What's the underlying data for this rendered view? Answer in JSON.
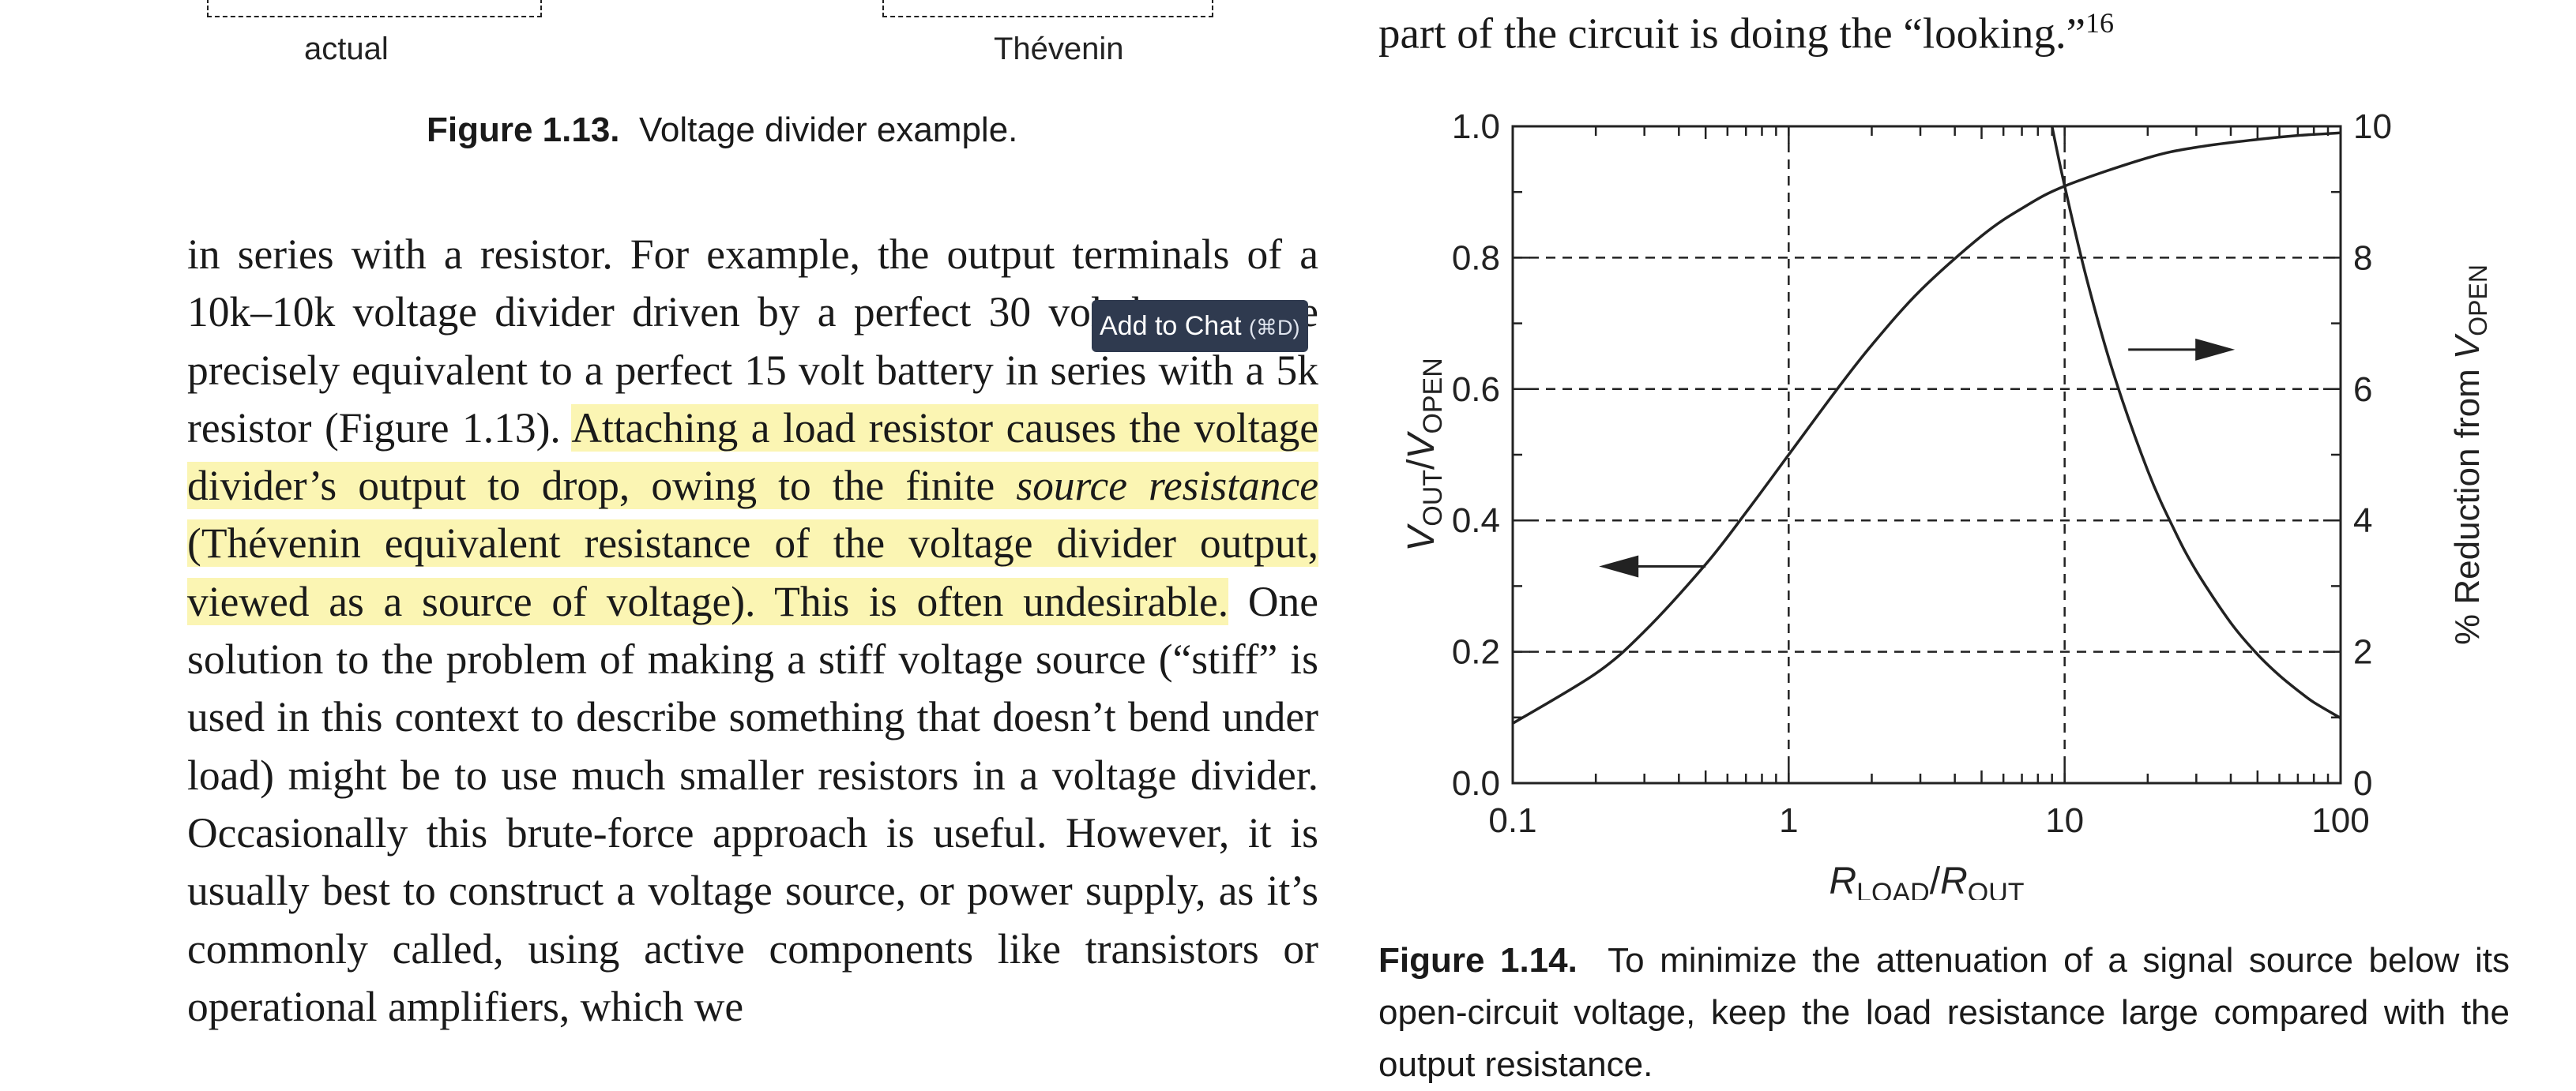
{
  "figure_1_13": {
    "label_actual": "actual",
    "label_thevenin": "Thévenin",
    "caption_number": "Figure 1.13.",
    "caption_text": "Voltage divider example."
  },
  "body_text": {
    "p1_plain": "in series with a resistor. For example, the output terminals of a 10k–10k voltage divider driven by a perfect 30 volt battery are precisely equivalent to a perfect 15 volt battery in series with a 5k resistor (Figure 1.13). ",
    "p1_hl1": "Attaching a load resistor causes the voltage divider’s output to drop, owing to the finite ",
    "p1_hl_italic": "source resistance",
    "p1_hl2": " (Thévenin equivalent resistance of the voltage divider output, viewed as a source of voltage). This is often undesirable.",
    "p1_rest": " One solution to the problem of making a stiff voltage source (“stiff” is used in this context to describe something that doesn’t bend under load) might be to use much smaller resistors in a voltage divider. Occasionally this brute-force approach is useful. However, it is usually best to construct a voltage source, or power supply, as it’s commonly called, using active components like transistors or operational amplifiers, which we"
  },
  "tooltip": {
    "label": "Add to Chat",
    "shortcut": "(⌘D)"
  },
  "right_column": {
    "top_line": "part of the circuit is doing the “looking.”",
    "footnote": "16"
  },
  "chart_data": {
    "type": "line",
    "xscale": "log",
    "xlim": [
      0.1,
      100
    ],
    "ylim_left": [
      0,
      1.0
    ],
    "ylim_right": [
      0,
      10
    ],
    "x_ticks": [
      "0.1",
      "1",
      "10",
      "100"
    ],
    "y_left_ticks": [
      "0.0",
      "0.2",
      "0.4",
      "0.6",
      "0.8",
      "1.0"
    ],
    "y_right_ticks": [
      "0",
      "2",
      "4",
      "6",
      "8",
      "10"
    ],
    "xlabel": {
      "main": "R",
      "sub1": "LOAD",
      "slash": "/R",
      "sub2": "OUT"
    },
    "ylabel_left": {
      "main": "V",
      "sub1": "OUT",
      "slash": "/V",
      "sub2": "OPEN"
    },
    "ylabel_right": {
      "main": "% Reduction from V",
      "sub": "OPEN"
    },
    "grid": "dashed at major ticks",
    "series": [
      {
        "axis": "left",
        "x": [
          0.1,
          0.2,
          0.3,
          0.5,
          0.7,
          1,
          1.5,
          2,
          3,
          5,
          7,
          10,
          20,
          30,
          50,
          70,
          100
        ],
        "y": [
          0.091,
          0.167,
          0.231,
          0.333,
          0.412,
          0.5,
          0.6,
          0.667,
          0.75,
          0.833,
          0.875,
          0.909,
          0.952,
          0.968,
          0.98,
          0.986,
          0.99
        ]
      },
      {
        "axis": "right",
        "x": [
          8.1,
          9,
          10,
          12,
          15,
          20,
          25,
          30,
          40,
          50,
          60,
          70,
          80,
          100
        ],
        "y": [
          10.99,
          10.0,
          9.09,
          7.69,
          6.25,
          4.76,
          3.85,
          3.23,
          2.44,
          1.96,
          1.64,
          1.41,
          1.23,
          0.99
        ]
      }
    ],
    "arrow_left_series": "left",
    "arrow_right_series": "right"
  },
  "figure_1_14": {
    "caption_number": "Figure 1.14.",
    "caption_text": "To minimize the attenuation of a signal source below its open-circuit voltage, keep the load resistance large compared with the output resistance."
  }
}
